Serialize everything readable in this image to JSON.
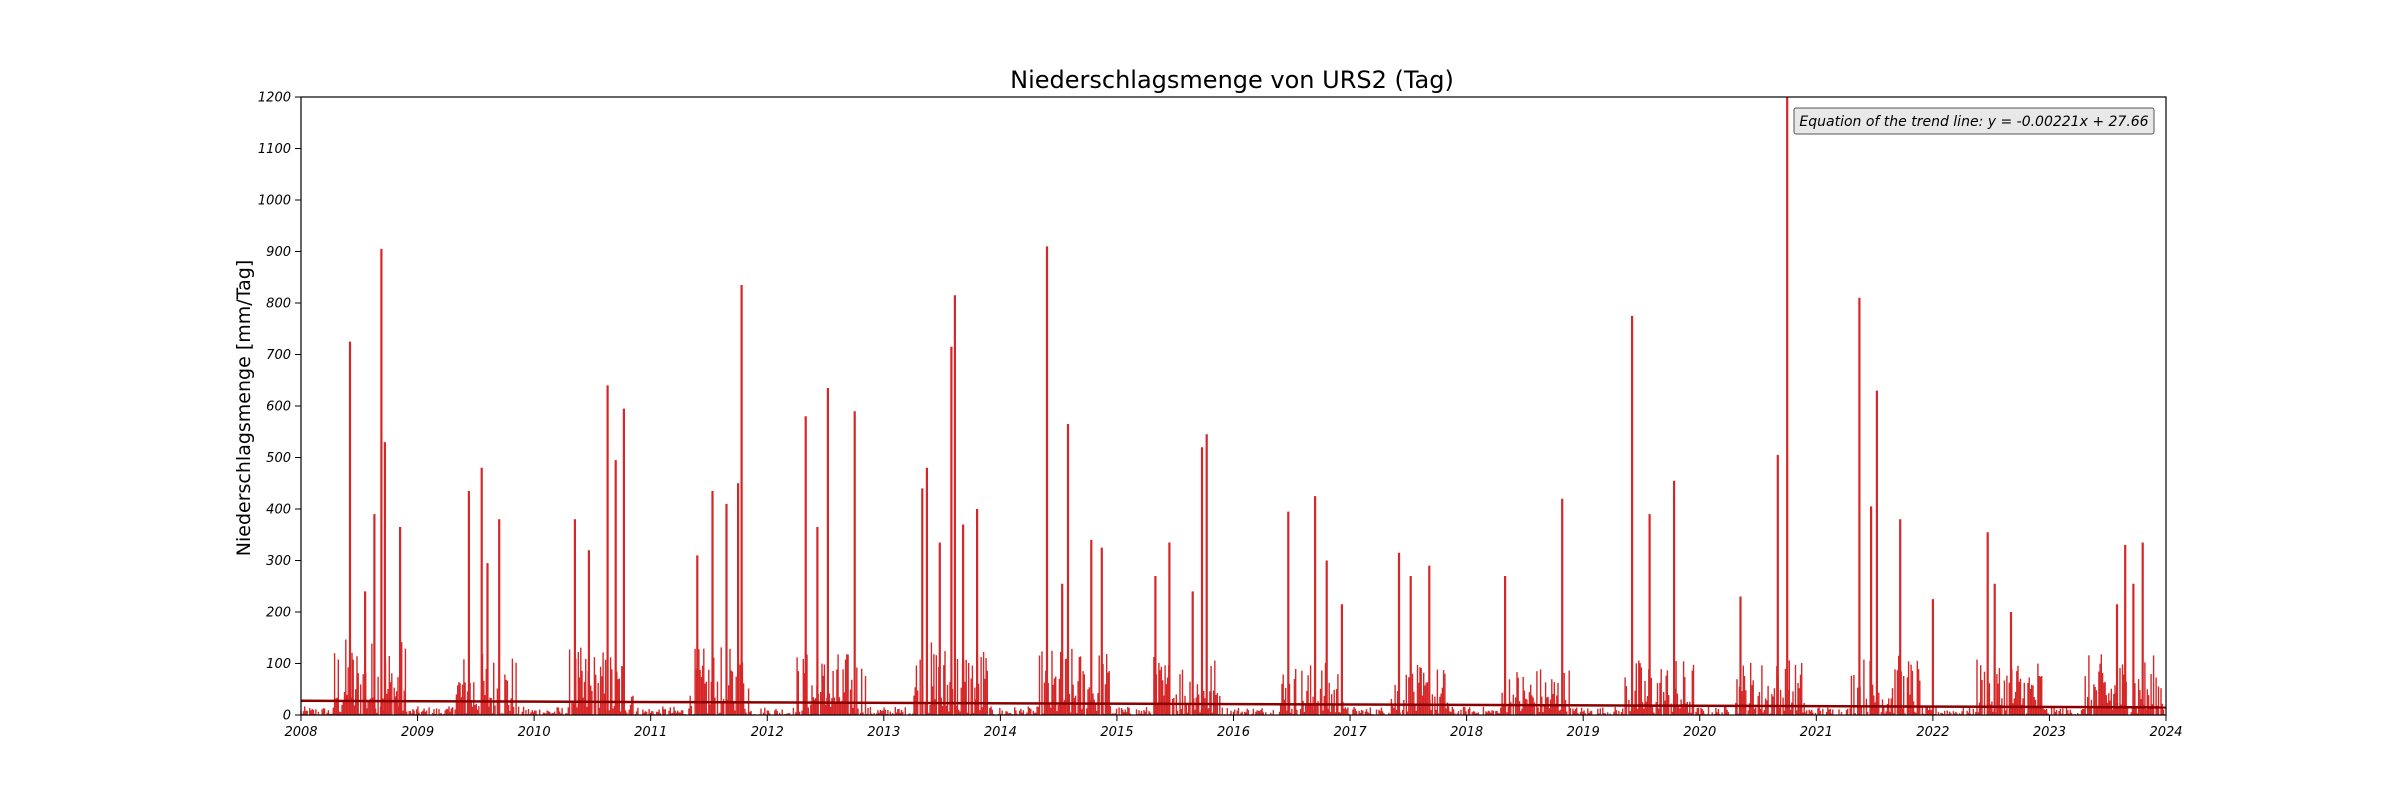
{
  "chart_data": {
    "type": "bar",
    "title": "Niederschlagsmenge von URS2 (Tag)",
    "xlabel": "",
    "ylabel": "Niederschlagsmenge [mm/Tag]",
    "xlim": [
      2008,
      2024
    ],
    "ylim": [
      0,
      1200
    ],
    "x_ticks": [
      "2008",
      "2009",
      "2010",
      "2011",
      "2012",
      "2013",
      "2014",
      "2015",
      "2016",
      "2017",
      "2018",
      "2019",
      "2020",
      "2021",
      "2022",
      "2023",
      "2024"
    ],
    "y_ticks": [
      "0",
      "100",
      "200",
      "300",
      "400",
      "500",
      "600",
      "700",
      "800",
      "900",
      "1000",
      "1100",
      "1200"
    ],
    "grid": false,
    "bar_color": "#d62728",
    "trend_color": "#8b0000",
    "trend_line": {
      "equation": "Equation of the trend line: y = -0.00221x + 27.66",
      "slope_per_day": -0.00221,
      "intercept": 27.66
    },
    "peaks": [
      {
        "x": 2008.42,
        "y": 725
      },
      {
        "x": 2008.55,
        "y": 240
      },
      {
        "x": 2008.63,
        "y": 390
      },
      {
        "x": 2008.69,
        "y": 905
      },
      {
        "x": 2008.72,
        "y": 530
      },
      {
        "x": 2008.85,
        "y": 365
      },
      {
        "x": 2009.44,
        "y": 435
      },
      {
        "x": 2009.55,
        "y": 480
      },
      {
        "x": 2009.6,
        "y": 295
      },
      {
        "x": 2009.7,
        "y": 380
      },
      {
        "x": 2010.35,
        "y": 380
      },
      {
        "x": 2010.47,
        "y": 320
      },
      {
        "x": 2010.63,
        "y": 640
      },
      {
        "x": 2010.7,
        "y": 495
      },
      {
        "x": 2010.77,
        "y": 595
      },
      {
        "x": 2011.4,
        "y": 310
      },
      {
        "x": 2011.53,
        "y": 435
      },
      {
        "x": 2011.65,
        "y": 410
      },
      {
        "x": 2011.78,
        "y": 835
      },
      {
        "x": 2011.75,
        "y": 450
      },
      {
        "x": 2012.33,
        "y": 580
      },
      {
        "x": 2012.43,
        "y": 365
      },
      {
        "x": 2012.52,
        "y": 635
      },
      {
        "x": 2012.75,
        "y": 590
      },
      {
        "x": 2013.33,
        "y": 440
      },
      {
        "x": 2013.37,
        "y": 480
      },
      {
        "x": 2013.48,
        "y": 335
      },
      {
        "x": 2013.58,
        "y": 715
      },
      {
        "x": 2013.61,
        "y": 815
      },
      {
        "x": 2013.68,
        "y": 370
      },
      {
        "x": 2013.8,
        "y": 400
      },
      {
        "x": 2014.4,
        "y": 910
      },
      {
        "x": 2014.53,
        "y": 255
      },
      {
        "x": 2014.58,
        "y": 565
      },
      {
        "x": 2014.78,
        "y": 340
      },
      {
        "x": 2014.87,
        "y": 325
      },
      {
        "x": 2015.33,
        "y": 270
      },
      {
        "x": 2015.45,
        "y": 335
      },
      {
        "x": 2015.65,
        "y": 240
      },
      {
        "x": 2015.73,
        "y": 520
      },
      {
        "x": 2015.77,
        "y": 545
      },
      {
        "x": 2016.47,
        "y": 395
      },
      {
        "x": 2016.7,
        "y": 425
      },
      {
        "x": 2016.8,
        "y": 300
      },
      {
        "x": 2016.93,
        "y": 215
      },
      {
        "x": 2017.42,
        "y": 315
      },
      {
        "x": 2017.52,
        "y": 270
      },
      {
        "x": 2017.68,
        "y": 290
      },
      {
        "x": 2018.33,
        "y": 270
      },
      {
        "x": 2018.82,
        "y": 420
      },
      {
        "x": 2019.42,
        "y": 775
      },
      {
        "x": 2019.57,
        "y": 390
      },
      {
        "x": 2019.78,
        "y": 455
      },
      {
        "x": 2020.35,
        "y": 230
      },
      {
        "x": 2020.67,
        "y": 505
      },
      {
        "x": 2020.75,
        "y": 1200
      },
      {
        "x": 2021.37,
        "y": 810
      },
      {
        "x": 2021.47,
        "y": 405
      },
      {
        "x": 2021.52,
        "y": 630
      },
      {
        "x": 2021.72,
        "y": 380
      },
      {
        "x": 2022.0,
        "y": 225
      },
      {
        "x": 2022.47,
        "y": 355
      },
      {
        "x": 2022.53,
        "y": 255
      },
      {
        "x": 2022.67,
        "y": 200
      },
      {
        "x": 2023.65,
        "y": 330
      },
      {
        "x": 2023.8,
        "y": 335
      },
      {
        "x": 2023.72,
        "y": 255
      },
      {
        "x": 2023.58,
        "y": 215
      }
    ],
    "wet_seasons": [
      {
        "start": 2008.28,
        "end": 2008.9,
        "level": 110
      },
      {
        "start": 2009.3,
        "end": 2009.85,
        "level": 90
      },
      {
        "start": 2010.3,
        "end": 2010.85,
        "level": 95
      },
      {
        "start": 2011.33,
        "end": 2011.85,
        "level": 95
      },
      {
        "start": 2012.25,
        "end": 2012.85,
        "level": 90
      },
      {
        "start": 2013.25,
        "end": 2013.9,
        "level": 105
      },
      {
        "start": 2014.33,
        "end": 2014.95,
        "level": 95
      },
      {
        "start": 2015.3,
        "end": 2015.9,
        "level": 85
      },
      {
        "start": 2016.4,
        "end": 2016.95,
        "level": 75
      },
      {
        "start": 2017.33,
        "end": 2017.85,
        "level": 70
      },
      {
        "start": 2018.3,
        "end": 2018.9,
        "level": 70
      },
      {
        "start": 2019.35,
        "end": 2019.95,
        "level": 80
      },
      {
        "start": 2020.3,
        "end": 2020.9,
        "level": 80
      },
      {
        "start": 2021.3,
        "end": 2021.9,
        "level": 85
      },
      {
        "start": 2022.35,
        "end": 2022.95,
        "level": 85
      },
      {
        "start": 2023.3,
        "end": 2023.98,
        "level": 85
      }
    ]
  }
}
